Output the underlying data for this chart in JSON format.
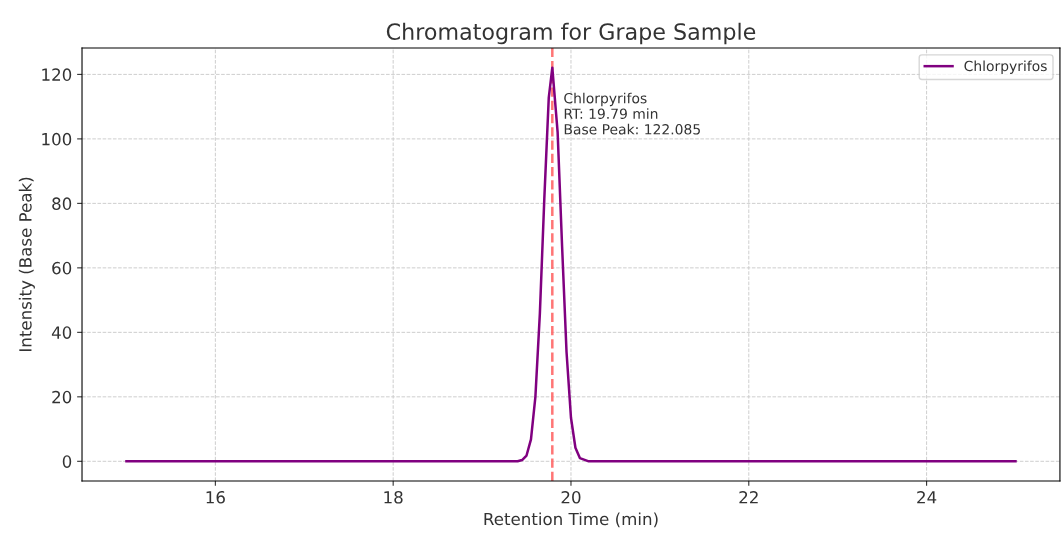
{
  "chart_data": {
    "type": "line",
    "title": "Chromatogram for Grape Sample",
    "xlabel": "Retention Time (min)",
    "ylabel": "Intensity (Base Peak)",
    "series": [
      {
        "name": "Chlorpyrifos",
        "color": "#800080",
        "x": [
          15,
          19.3,
          19.4,
          19.45,
          19.5,
          19.55,
          19.6,
          19.65,
          19.7,
          19.75,
          19.79,
          19.85,
          19.9,
          19.95,
          20.0,
          20.05,
          20.1,
          20.2,
          20.3,
          25
        ],
        "values": [
          0,
          0,
          0,
          0.4,
          1.8,
          6.8,
          20.1,
          45.8,
          81.4,
          112.7,
          122.085,
          102.0,
          66.7,
          33.9,
          13.5,
          4.2,
          1.0,
          0,
          0,
          0
        ]
      }
    ],
    "xlim": [
      14.5,
      25.5
    ],
    "xticks": [
      16,
      18,
      20,
      22,
      24
    ],
    "ylim": [
      -6.1,
      128.2
    ],
    "yticks": [
      0,
      20,
      40,
      60,
      80,
      100,
      120
    ],
    "ref_lines": [
      {
        "axis": "x",
        "value": 19.79,
        "color": "#ff6666",
        "line_style": "dashed"
      }
    ],
    "annotations": [
      {
        "text": "Chlorpyrifos\nRT: 19.79 min\nBase Peak: 122.085",
        "x": 19.79,
        "y": 122.085
      }
    ],
    "grid": true,
    "legend": "top right",
    "marker": "none",
    "line_style": "solid"
  }
}
